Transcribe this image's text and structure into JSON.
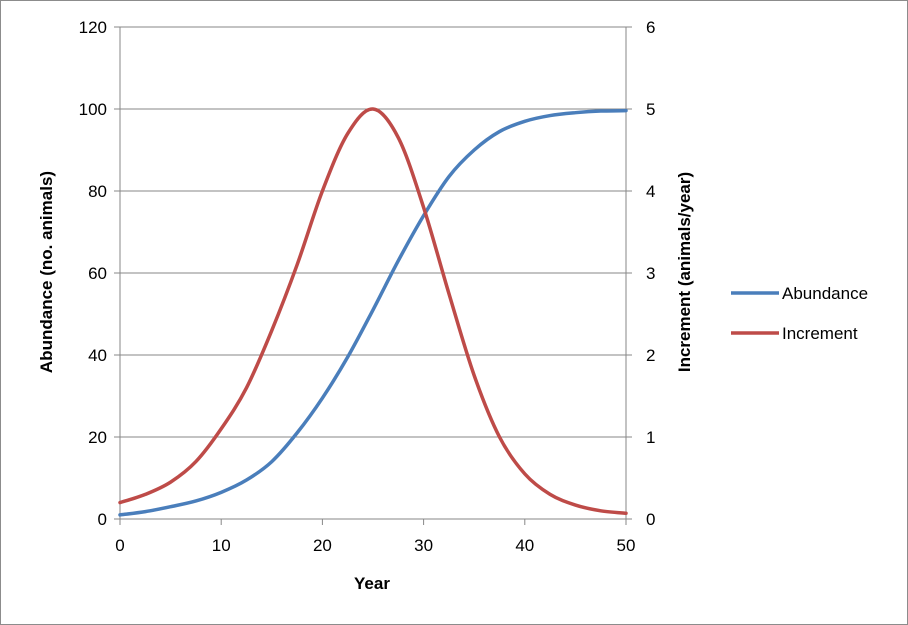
{
  "chart_data": {
    "type": "line",
    "title": "",
    "xlabel": "Year",
    "ylabel_left": "Abundance (no. animals)",
    "ylabel_right": "Increment (animals/year)",
    "xlim": [
      0,
      50
    ],
    "ylim_left": [
      0,
      120
    ],
    "ylim_right": [
      0,
      6
    ],
    "x_ticks": [
      0,
      10,
      20,
      30,
      40,
      50
    ],
    "y_left_ticks": [
      0,
      20,
      40,
      60,
      80,
      100,
      120
    ],
    "y_right_ticks": [
      0,
      1,
      2,
      3,
      4,
      5,
      6
    ],
    "grid": true,
    "legend_position": "right",
    "x": [
      0,
      2.5,
      5,
      7.5,
      10,
      12.5,
      15,
      17.5,
      20,
      22.5,
      25,
      27.5,
      30,
      32.5,
      35,
      37.5,
      40,
      42.5,
      45,
      47.5,
      50
    ],
    "series": [
      {
        "name": "Abundance",
        "axis": "left",
        "color": "#4a7ebb",
        "values": [
          1.0,
          1.8,
          3.0,
          4.4,
          6.5,
          9.5,
          14.0,
          21.0,
          29.5,
          39.5,
          51.0,
          63.0,
          74.0,
          83.5,
          90.0,
          94.5,
          97.0,
          98.4,
          99.1,
          99.5,
          99.6
        ]
      },
      {
        "name": "Increment",
        "axis": "right",
        "color": "#be4b48",
        "values": [
          0.2,
          0.3,
          0.45,
          0.7,
          1.1,
          1.6,
          2.3,
          3.1,
          4.0,
          4.7,
          5.0,
          4.65,
          3.8,
          2.75,
          1.75,
          1.0,
          0.55,
          0.3,
          0.17,
          0.1,
          0.07
        ]
      }
    ]
  }
}
